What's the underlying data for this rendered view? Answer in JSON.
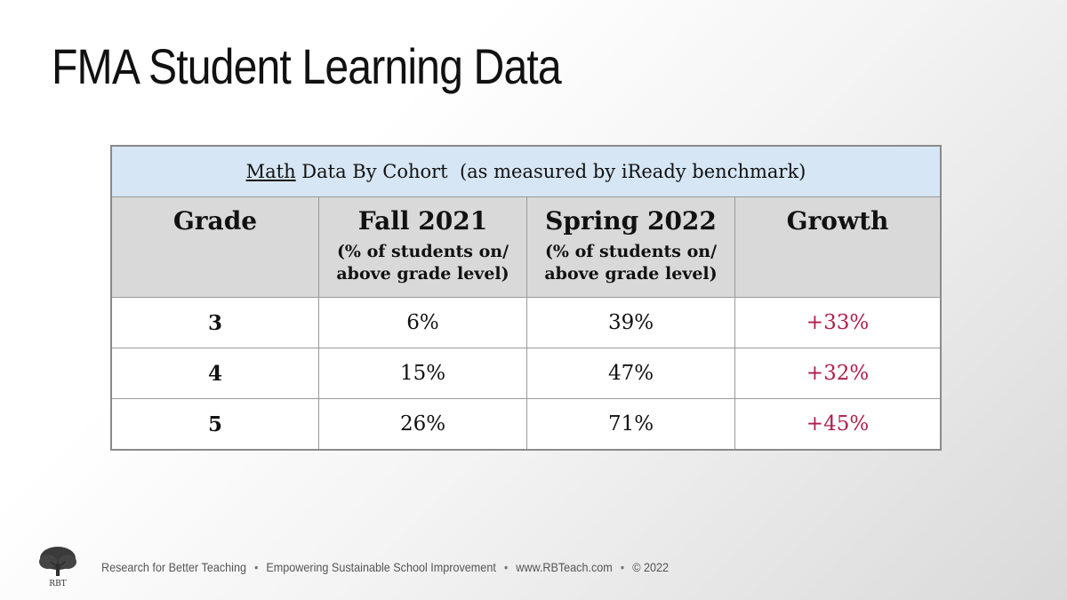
{
  "slide": {
    "title": "FMA Student Learning Data"
  },
  "table": {
    "caption_underlined": "Math",
    "caption_rest": " Data By Cohort  (as measured by iReady benchmark)",
    "headers": [
      {
        "title": "Grade",
        "sub1": "",
        "sub2": ""
      },
      {
        "title": "Fall 2021",
        "sub1": "(% of students on/",
        "sub2": "above grade level)"
      },
      {
        "title": "Spring 2022",
        "sub1": "(% of students on/",
        "sub2": "above grade level)"
      },
      {
        "title": "Growth",
        "sub1": "",
        "sub2": ""
      }
    ],
    "rows": [
      {
        "grade": "3",
        "fall": "6%",
        "spring": "39%",
        "growth": "+33%"
      },
      {
        "grade": "4",
        "fall": "15%",
        "spring": "47%",
        "growth": "+32%"
      },
      {
        "grade": "5",
        "fall": "26%",
        "spring": "71%",
        "growth": "+45%"
      }
    ]
  },
  "footer": {
    "logo_text": "RBT",
    "org": "Research for Better Teaching",
    "tagline": "Empowering Sustainable School Improvement",
    "website": "www.RBTeach.com",
    "copyright": "© 2022",
    "separator": "•"
  },
  "colors": {
    "caption_bg": "#d6e6f4",
    "header_bg": "#d9d9d9",
    "growth_text": "#b01e4a"
  }
}
